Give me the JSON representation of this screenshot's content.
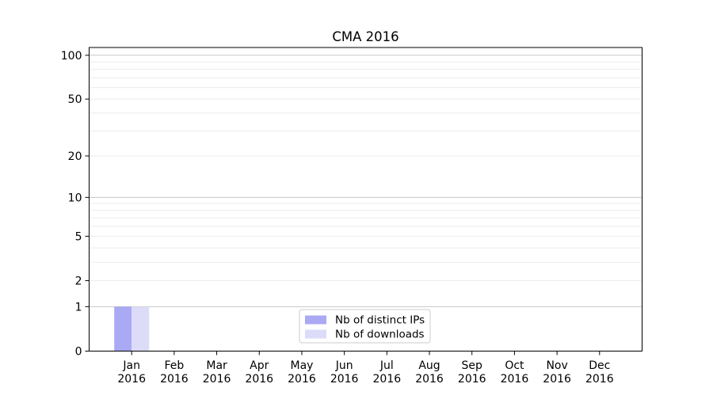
{
  "chart_data": {
    "type": "bar",
    "title": "CMA 2016",
    "categories": [
      "Jan 2016",
      "Feb 2016",
      "Mar 2016",
      "Apr 2016",
      "May 2016",
      "Jun 2016",
      "Jul 2016",
      "Aug 2016",
      "Sep 2016",
      "Oct 2016",
      "Nov 2016",
      "Dec 2016"
    ],
    "series": [
      {
        "name": "Nb of distinct IPs",
        "color": "#a9a9f4",
        "values": [
          1,
          0,
          0,
          0,
          0,
          0,
          0,
          0,
          0,
          0,
          0,
          0
        ]
      },
      {
        "name": "Nb of downloads",
        "color": "#dcdcf8",
        "values": [
          1,
          0,
          0,
          0,
          0,
          0,
          0,
          0,
          0,
          0,
          0,
          0
        ]
      }
    ],
    "xlabel": "",
    "ylabel": "",
    "yscale": "log1p",
    "ylim": [
      0,
      113
    ],
    "y_tick_labels": [
      100,
      50,
      20,
      10,
      5,
      2,
      1,
      0
    ],
    "y_decade_gridlines": [
      1,
      10,
      100
    ],
    "y_minor_gridlines": [
      2,
      3,
      4,
      5,
      6,
      7,
      8,
      9,
      20,
      30,
      40,
      50,
      60,
      70,
      80,
      90
    ],
    "grid": true,
    "legend_position": "lower center"
  },
  "colors": {
    "spine": "#000000",
    "grid_decade": "#c6c6c6",
    "grid_minor": "#ececec",
    "legend_border": "#cccccc",
    "legend_background": "#ffffff"
  }
}
